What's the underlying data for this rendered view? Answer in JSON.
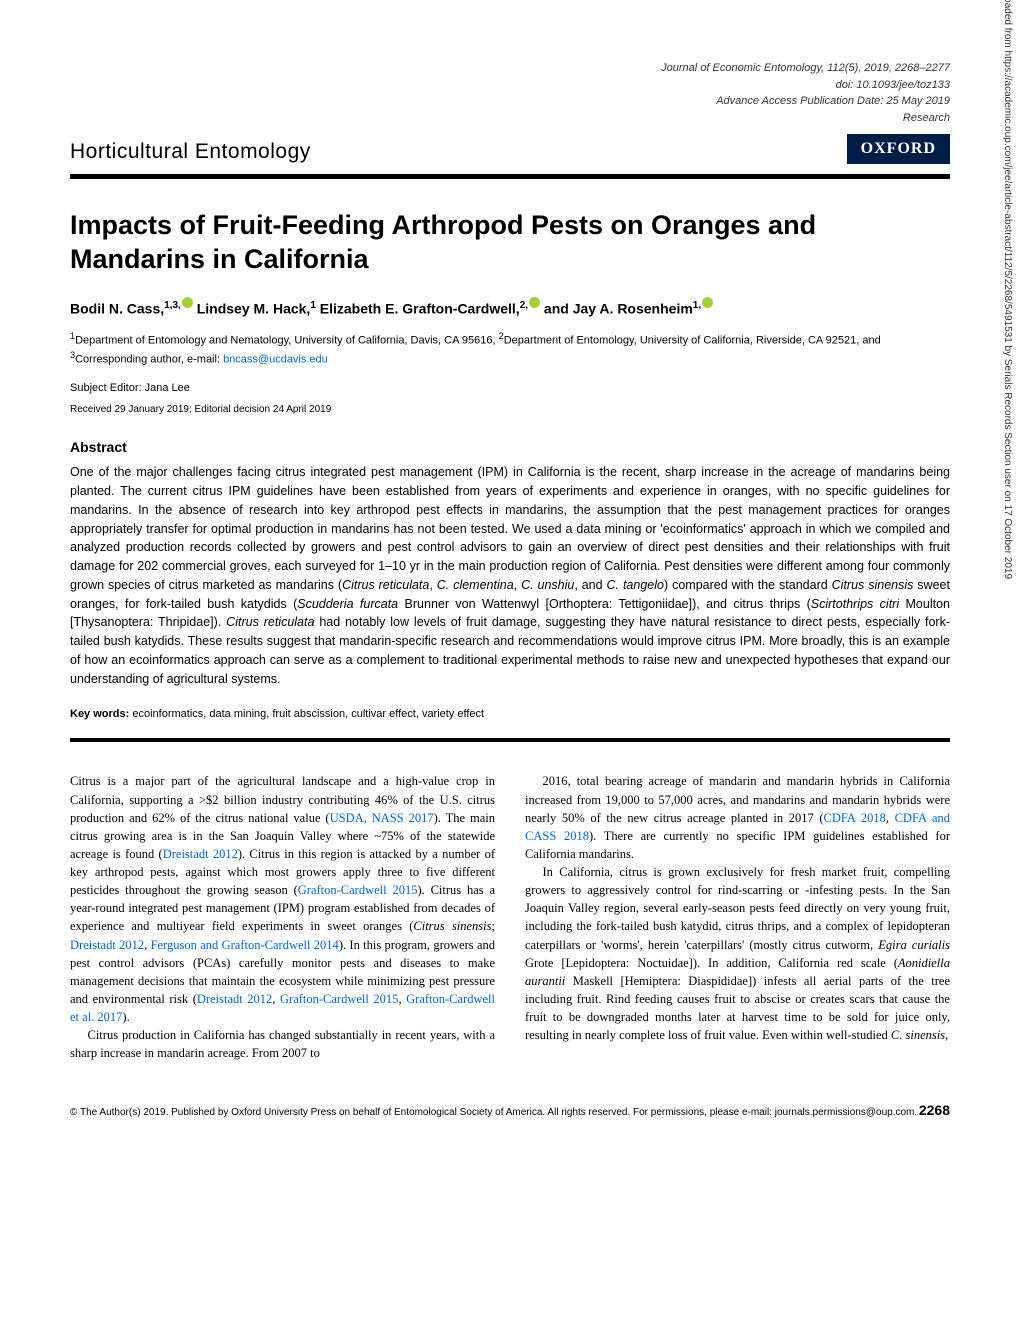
{
  "meta": {
    "journal_line": "Journal of Economic Entomology, 112(5), 2019, 2268–2277",
    "doi_line": "doi: 10.1093/jee/toz133",
    "advance_line": "Advance Access Publication Date: 25 May 2019",
    "type_line": "Research"
  },
  "section": "Horticultural Entomology",
  "publisher_badge": "OXFORD",
  "title": "Impacts of Fruit-Feeding Arthropod Pests on Oranges and Mandarins in California",
  "authors_html": "Bodil N. Cass,<span class='sup'>1,3,</span><span class='orcid'></span> Lindsey M. Hack,<span class='sup'>1</span> Elizabeth E. Grafton-Cardwell,<span class='sup'>2,</span><span class='orcid'></span> and Jay A. Rosenheim<span class='sup'>1,</span><span class='orcid'></span>",
  "affiliations_html": "<sup>1</sup>Department of Entomology and Nematology, University of California, Davis, CA 95616, <sup>2</sup>Department of Entomology, University of California, Riverside, CA 92521, and <sup>3</sup>Corresponding author, e-mail: <a href='mailto:bncass@ucdavis.edu'>bncass@ucdavis.edu</a>",
  "subject_editor": "Subject Editor: Jana Lee",
  "dates": "Received 29 January 2019; Editorial decision 24 April 2019",
  "abstract_heading": "Abstract",
  "abstract_html": "One of the major challenges facing citrus integrated pest management (IPM) in California is the recent, sharp increase in the acreage of mandarins being planted. The current citrus IPM guidelines have been established from years of experiments and experience in oranges, with no specific guidelines for mandarins. In the absence of research into key arthropod pest effects in mandarins, the assumption that the pest management practices for oranges appropriately transfer for optimal production in mandarins has not been tested. We used a data mining or 'ecoinformatics' approach in which we compiled and analyzed production records collected by growers and pest control advisors to gain an overview of direct pest densities and their relationships with fruit damage for 202 commercial groves, each surveyed for 1–10 yr in the main production region of California. Pest densities were different among four commonly grown species of citrus marketed as mandarins (<i>Citrus reticulata</i>, <i>C. clementina</i>, <i>C. unshiu</i>, and <i>C. tangelo</i>) compared with the standard <i>Citrus sinensis</i> sweet oranges, for fork-tailed bush katydids (<i>Scudderia furcata</i> Brunner von Wattenwyl [Orthoptera: Tettigoniidae]), and citrus thrips (<i>Scirtothrips citri</i> Moulton [Thysanoptera: Thripidae]). <i>Citrus reticulata</i> had notably low levels of fruit damage, suggesting they have natural resistance to direct pests, especially fork-tailed bush katydids. These results suggest that mandarin-specific research and recommendations would improve citrus IPM. More broadly, this is an example of how an ecoinformatics approach can serve as a complement to traditional experimental methods to raise new and unexpected hypotheses that expand our understanding of agricultural systems.",
  "keywords": {
    "label": "Key words:",
    "text": " ecoinformatics, data mining, fruit abscission, cultivar effect, variety effect"
  },
  "body_col1_p1_html": "Citrus is a major part of the agricultural landscape and a high-value crop in California, supporting a &gt;$2 billion industry contributing 46% of the U.S. citrus production and 62% of the citrus national value (<a href='#'>USDA, NASS 2017</a>). The main citrus growing area is in the San Joaquin Valley where ~75% of the statewide acreage is found (<a href='#'>Dreistadt 2012</a>). Citrus in this region is attacked by a number of key arthropod pests, against which most growers apply three to five different pesticides throughout the growing season (<a href='#'>Grafton-Cardwell 2015</a>). Citrus has a year-round integrated pest management (IPM) program established from decades of experience and multiyear field experiments in sweet oranges (<i>Citrus sinensis</i>; <a href='#'>Dreistadt 2012</a>, <a href='#'>Ferguson and Grafton-Cardwell 2014</a>). In this program, growers and pest control advisors (PCAs) carefully monitor pests and diseases to make management decisions that maintain the ecosystem while minimizing pest pressure and environmental risk (<a href='#'>Dreistadt 2012</a>, <a href='#'>Grafton-Cardwell 2015</a>, <a href='#'>Grafton-Cardwell et al. 2017</a>).",
  "body_col1_p2_html": "Citrus production in California has changed substantially in recent years, with a sharp increase in mandarin acreage. From 2007 to",
  "body_col2_p1_html": "2016, total bearing acreage of mandarin and mandarin hybrids in California increased from 19,000 to 57,000 acres, and mandarins and mandarin hybrids were nearly 50% of the new citrus acreage planted in 2017 (<a href='#'>CDFA 2018</a>, <a href='#'>CDFA and CASS 2018</a>). There are currently no specific IPM guidelines established for California mandarins.",
  "body_col2_p2_html": "In California, citrus is grown exclusively for fresh market fruit, compelling growers to aggressively control for rind-scarring or -infesting pests. In the San Joaquin Valley region, several early-season pests feed directly on very young fruit, including the fork-tailed bush katydid, citrus thrips, and a complex of lepidopteran caterpillars or 'worms', herein 'caterpillars' (mostly citrus cutworm, <i>Egira curialis</i> Grote [Lepidoptera: Noctuidae]). In addition, California red scale (<i>Aonidiella aurantii</i> Maskell [Hemiptera: Diaspididae]) infests all aerial parts of the tree including fruit. Rind feeding causes fruit to abscise or creates scars that cause the fruit to be downgraded months later at harvest time to be sold for juice only, resulting in nearly complete loss of fruit value. Even within well-studied <i>C. sinensis</i>,",
  "footer": {
    "copyright": "© The Author(s) 2019. Published by Oxford University Press on behalf of Entomological Society of America. All rights reserved. For permissions, please e-mail: journals.permissions@oup.com.",
    "page_number": "2268"
  },
  "side_text": "Downloaded from https://academic.oup.com/jee/article-abstract/112/5/2268/5491531 by Serials Records Section user on 17 October 2019"
}
